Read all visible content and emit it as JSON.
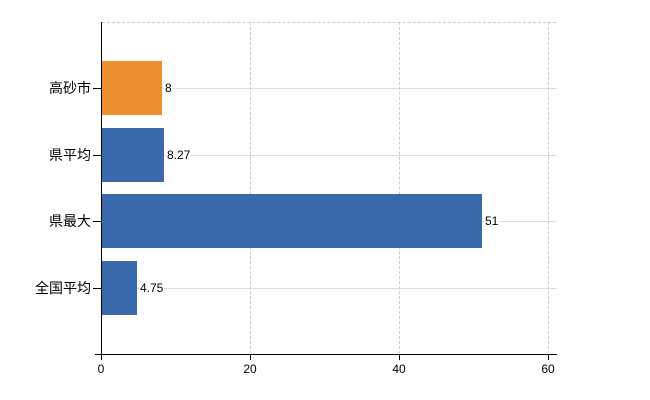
{
  "chart_data": {
    "type": "bar",
    "orientation": "horizontal",
    "title": "",
    "xlabel": "",
    "ylabel": "",
    "legend_position": "none",
    "categories": [
      "高砂市",
      "県平均",
      "県最大",
      "全国平均"
    ],
    "values": [
      8,
      8.27,
      51,
      4.75
    ],
    "value_labels": [
      "8",
      "8.27",
      "51",
      "4.75"
    ],
    "bar_colors": [
      "#ef8e2e",
      "#3a6aac",
      "#3a6aac",
      "#3a6aac"
    ],
    "xlim": [
      0,
      60
    ],
    "x_tick_values": [
      0,
      20,
      40,
      60
    ],
    "x_tick_labels": [
      "0",
      "20",
      "40",
      "60"
    ],
    "grid": {
      "horizontal_style": "solid",
      "horizontal_color": "#d6ded6",
      "vertical_style": "dashed",
      "vertical_color": "#d1c9cd",
      "plot_top_border_style": "dashed"
    },
    "axis_color": "#000000",
    "text_color": "#000000",
    "background_color": "#ffffff"
  }
}
